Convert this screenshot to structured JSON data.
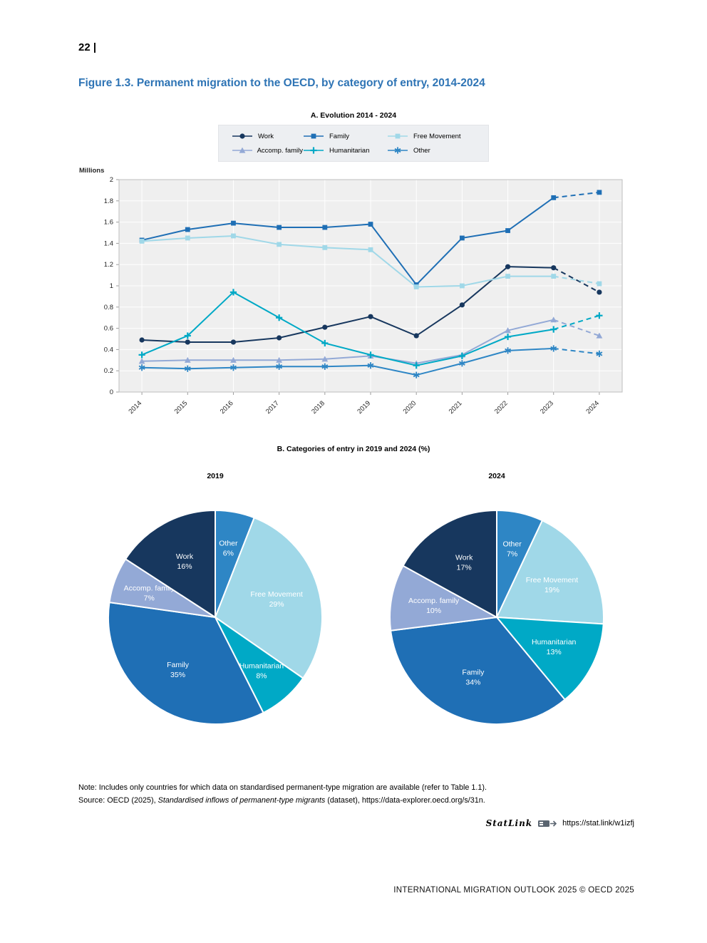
{
  "page": {
    "number_label": "22 |",
    "footer": "INTERNATIONAL MIGRATION OUTLOOK 2025 © OECD 2025"
  },
  "figure": {
    "title": "Figure 1.3. Permanent migration to the OECD, by category of entry, 2014-2024",
    "panel_a_title": "A. Evolution 2014 - 2024",
    "panel_b_title": "B. Categories of entry in 2019 and 2024 (%)",
    "note": "Note: Includes only countries for which data on standardised permanent-type migration are available (refer to Table 1.1).",
    "source_prefix": "Source: OECD (2025), ",
    "source_italic": "Standardised inflows of permanent-type migrants",
    "source_suffix": " (dataset), https://data-explorer.oecd.org/s/31n.",
    "statlink_label": "StatLink",
    "statlink_url": "https://stat.link/w1izfj"
  },
  "colors": {
    "work": "#17375e",
    "family": "#1f6fb5",
    "free_movement": "#a0d8e8",
    "accomp_family": "#93a9d6",
    "humanitarian": "#00a9c6",
    "other": "#2e86c5",
    "title_blue": "#2e74b5",
    "plot_bg": "#efefef"
  },
  "chart_data": [
    {
      "type": "line",
      "title": "A. Evolution 2014 - 2024",
      "ylabel": "Millions",
      "ylim": [
        0,
        2
      ],
      "ytick_step": 0.2,
      "grid": true,
      "legend_position": "top",
      "dashed_last_segment": true,
      "x": [
        "2014",
        "2015",
        "2016",
        "2017",
        "2018",
        "2019",
        "2020",
        "2021",
        "2022",
        "2023",
        "2024"
      ],
      "series": [
        {
          "name": "Work",
          "marker": "circle",
          "color_key": "work",
          "values": [
            0.49,
            0.47,
            0.47,
            0.51,
            0.61,
            0.71,
            0.53,
            0.82,
            1.18,
            1.17,
            0.94
          ]
        },
        {
          "name": "Family",
          "marker": "square",
          "color_key": "family",
          "values": [
            1.43,
            1.53,
            1.59,
            1.55,
            1.55,
            1.58,
            1.01,
            1.45,
            1.52,
            1.83,
            1.88
          ]
        },
        {
          "name": "Free Movement",
          "marker": "square",
          "color_key": "free_movement",
          "values": [
            1.42,
            1.45,
            1.47,
            1.39,
            1.36,
            1.34,
            0.99,
            1.0,
            1.09,
            1.09,
            1.02
          ]
        },
        {
          "name": "Accomp. family",
          "marker": "triangle",
          "color_key": "accomp_family",
          "values": [
            0.29,
            0.3,
            0.3,
            0.3,
            0.31,
            0.34,
            0.27,
            0.35,
            0.58,
            0.68,
            0.53
          ]
        },
        {
          "name": "Humanitarian",
          "marker": "plus",
          "color_key": "humanitarian",
          "values": [
            0.35,
            0.53,
            0.94,
            0.7,
            0.46,
            0.35,
            0.25,
            0.34,
            0.52,
            0.59,
            0.72
          ]
        },
        {
          "name": "Other",
          "marker": "asterisk",
          "color_key": "other",
          "values": [
            0.23,
            0.22,
            0.23,
            0.24,
            0.24,
            0.25,
            0.16,
            0.27,
            0.39,
            0.41,
            0.36
          ]
        }
      ]
    },
    {
      "type": "pie",
      "title": "2019",
      "start": "top",
      "direction": "clockwise",
      "slices": [
        {
          "name": "Other",
          "pct": 6,
          "color_key": "other"
        },
        {
          "name": "Free Movement",
          "pct": 29,
          "color_key": "free_movement"
        },
        {
          "name": "Humanitarian",
          "pct": 8,
          "color_key": "humanitarian"
        },
        {
          "name": "Family",
          "pct": 35,
          "color_key": "family"
        },
        {
          "name": "Accomp. family",
          "pct": 7,
          "color_key": "accomp_family"
        },
        {
          "name": "Work",
          "pct": 16,
          "color_key": "work"
        }
      ]
    },
    {
      "type": "pie",
      "title": "2024",
      "start": "top",
      "direction": "clockwise",
      "slices": [
        {
          "name": "Other",
          "pct": 7,
          "color_key": "other"
        },
        {
          "name": "Free Movement",
          "pct": 19,
          "color_key": "free_movement"
        },
        {
          "name": "Humanitarian",
          "pct": 13,
          "color_key": "humanitarian"
        },
        {
          "name": "Family",
          "pct": 34,
          "color_key": "family"
        },
        {
          "name": "Accomp. family",
          "pct": 10,
          "color_key": "accomp_family"
        },
        {
          "name": "Work",
          "pct": 17,
          "color_key": "work"
        }
      ]
    }
  ]
}
